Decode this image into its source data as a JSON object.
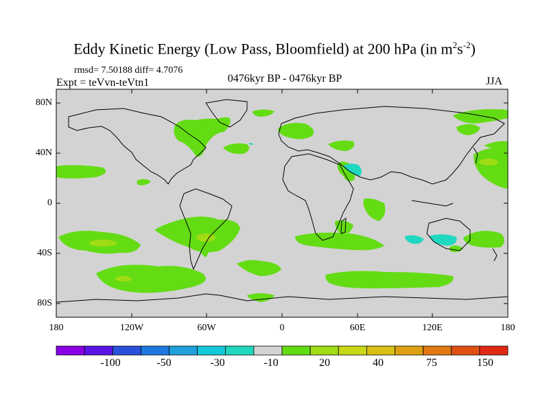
{
  "title": {
    "main": "Eddy Kinetic Energy (Low Pass, Bloomfield) at 200 hPa (in m",
    "sup1": "2",
    "mid": "s",
    "sup2": "-2",
    "end": ")"
  },
  "stats": "rmsd= 7.50188 diff= 4.7076",
  "experiment": "Expt = teVvn-teVtn1",
  "period": "0476kyr BP - 0476kyr BP",
  "season": "JJA",
  "map": {
    "projection": "cylindrical equidistant",
    "lon_range": [
      -180,
      180
    ],
    "lat_range": [
      -90,
      90
    ],
    "lat_ticks": [
      "80N",
      "40N",
      "0",
      "40S",
      "80S"
    ],
    "lon_ticks": [
      "180",
      "120W",
      "60W",
      "0",
      "60E",
      "120E",
      "180"
    ],
    "background_color": "#d3d3d3",
    "coastline_color": "#000000"
  },
  "colorbar": {
    "colors": [
      "#8a00e6",
      "#5a14e6",
      "#2a50dc",
      "#1e78e0",
      "#1ea0dc",
      "#14c8dc",
      "#20d8c0",
      "#d3d3d3",
      "#64dc14",
      "#a0dc14",
      "#c8d814",
      "#d8c014",
      "#e0a014",
      "#e07814",
      "#e05014",
      "#e02814"
    ],
    "labels": [
      "-100",
      "-50",
      "-30",
      "-10",
      "20",
      "40",
      "75",
      "150"
    ]
  }
}
